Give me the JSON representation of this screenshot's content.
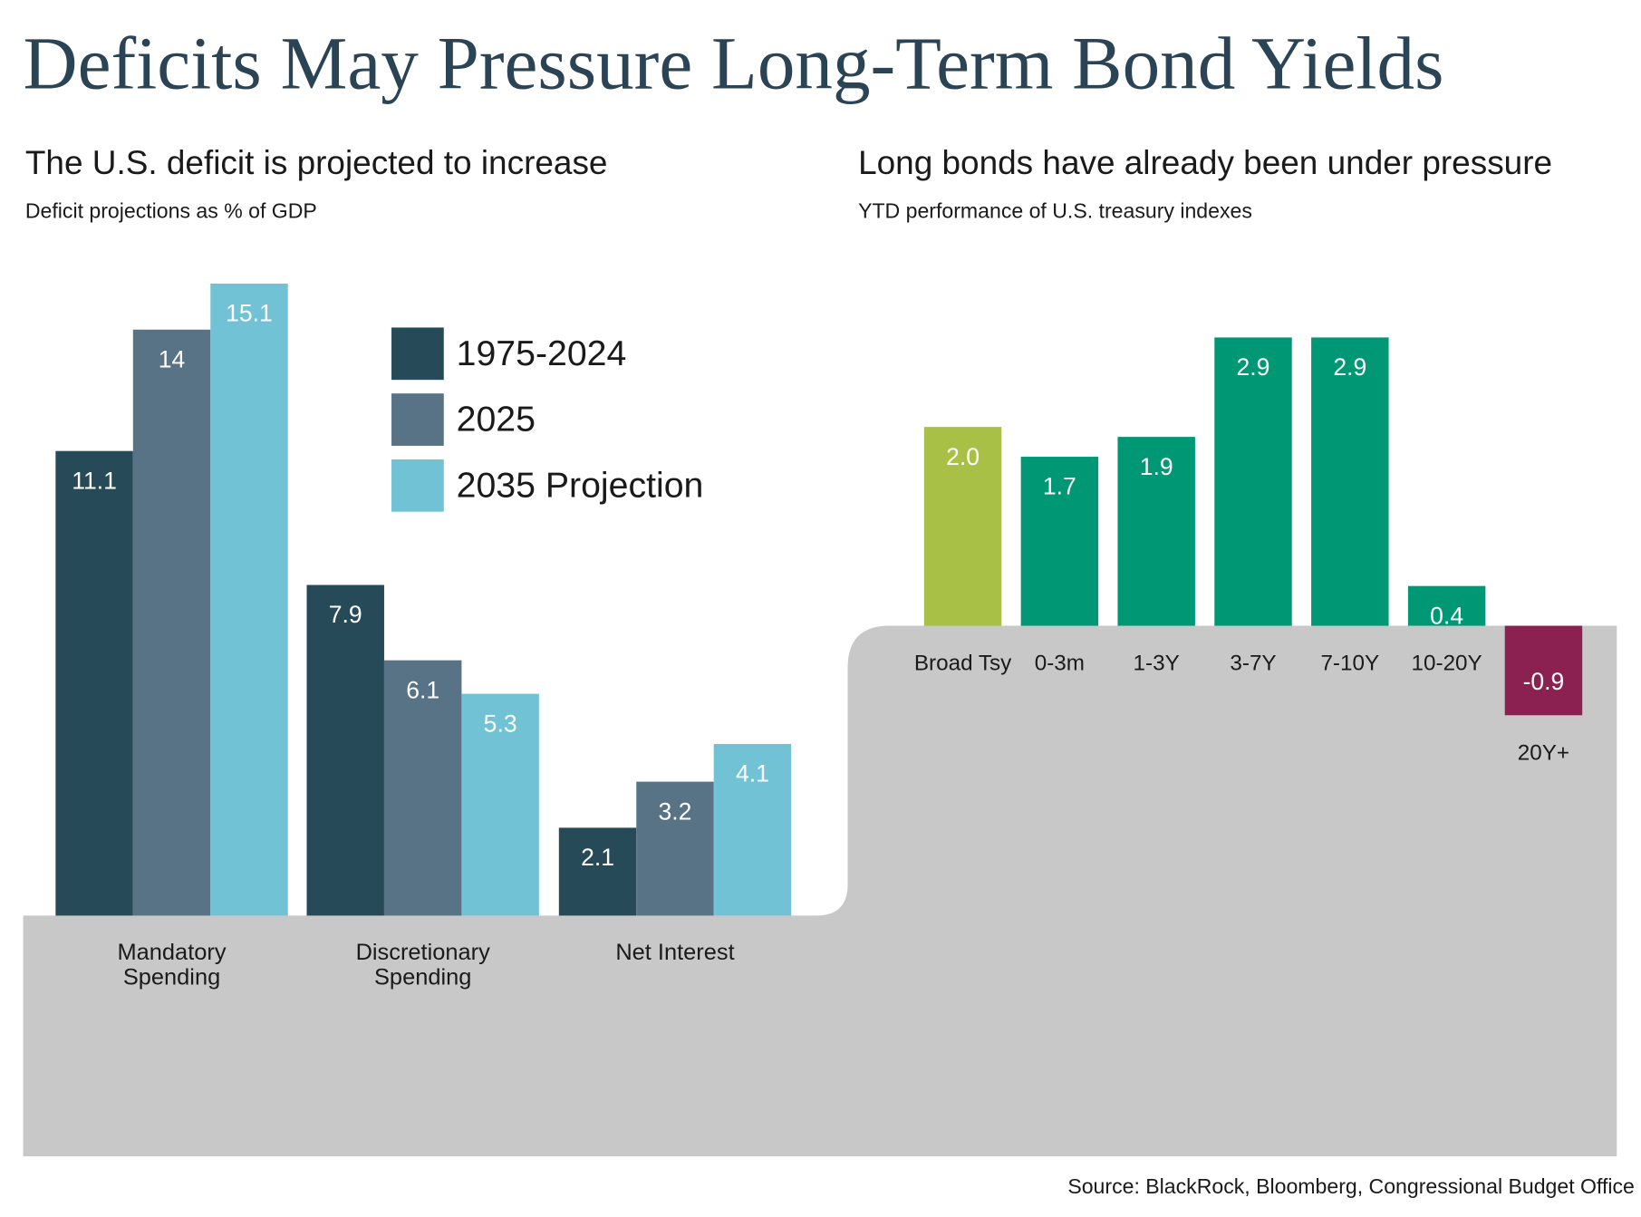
{
  "title": "Deficits May Pressure Long-Term Bond Yields",
  "source": "Source: BlackRock, Bloomberg, Congressional Budget Office",
  "chart_data": [
    {
      "type": "bar",
      "title": "The U.S. deficit is projected to increase",
      "subtitle": "Deficit projections as % of GDP",
      "categories": [
        "Mandatory Spending",
        "Discretionary Spending",
        "Net Interest"
      ],
      "series": [
        {
          "name": "1975-2024",
          "color": "#264a58",
          "values": [
            11.1,
            7.9,
            2.1
          ]
        },
        {
          "name": "2025",
          "color": "#587385",
          "values": [
            14,
            6.1,
            3.2
          ]
        },
        {
          "name": "2035 Projection",
          "color": "#72c2d5",
          "values": [
            15.1,
            5.3,
            4.1
          ]
        }
      ],
      "legend": "top-right"
    },
    {
      "type": "bar",
      "title": "Long bonds have already been under pressure",
      "subtitle": "YTD performance of U.S. treasury indexes",
      "categories": [
        "Broad Tsy",
        "0-3m",
        "1-3Y",
        "3-7Y",
        "7-10Y",
        "10-20Y",
        "20Y+"
      ],
      "values": [
        2.0,
        1.7,
        1.9,
        2.9,
        2.9,
        0.4,
        -0.9
      ],
      "value_labels": [
        "2.0",
        "1.7",
        "1.9",
        "2.9",
        "2.9",
        "0.4",
        "-0.9"
      ],
      "colors": [
        "#a8c046",
        "#009874",
        "#009874",
        "#009874",
        "#009874",
        "#009874",
        "#8b2150"
      ]
    }
  ]
}
